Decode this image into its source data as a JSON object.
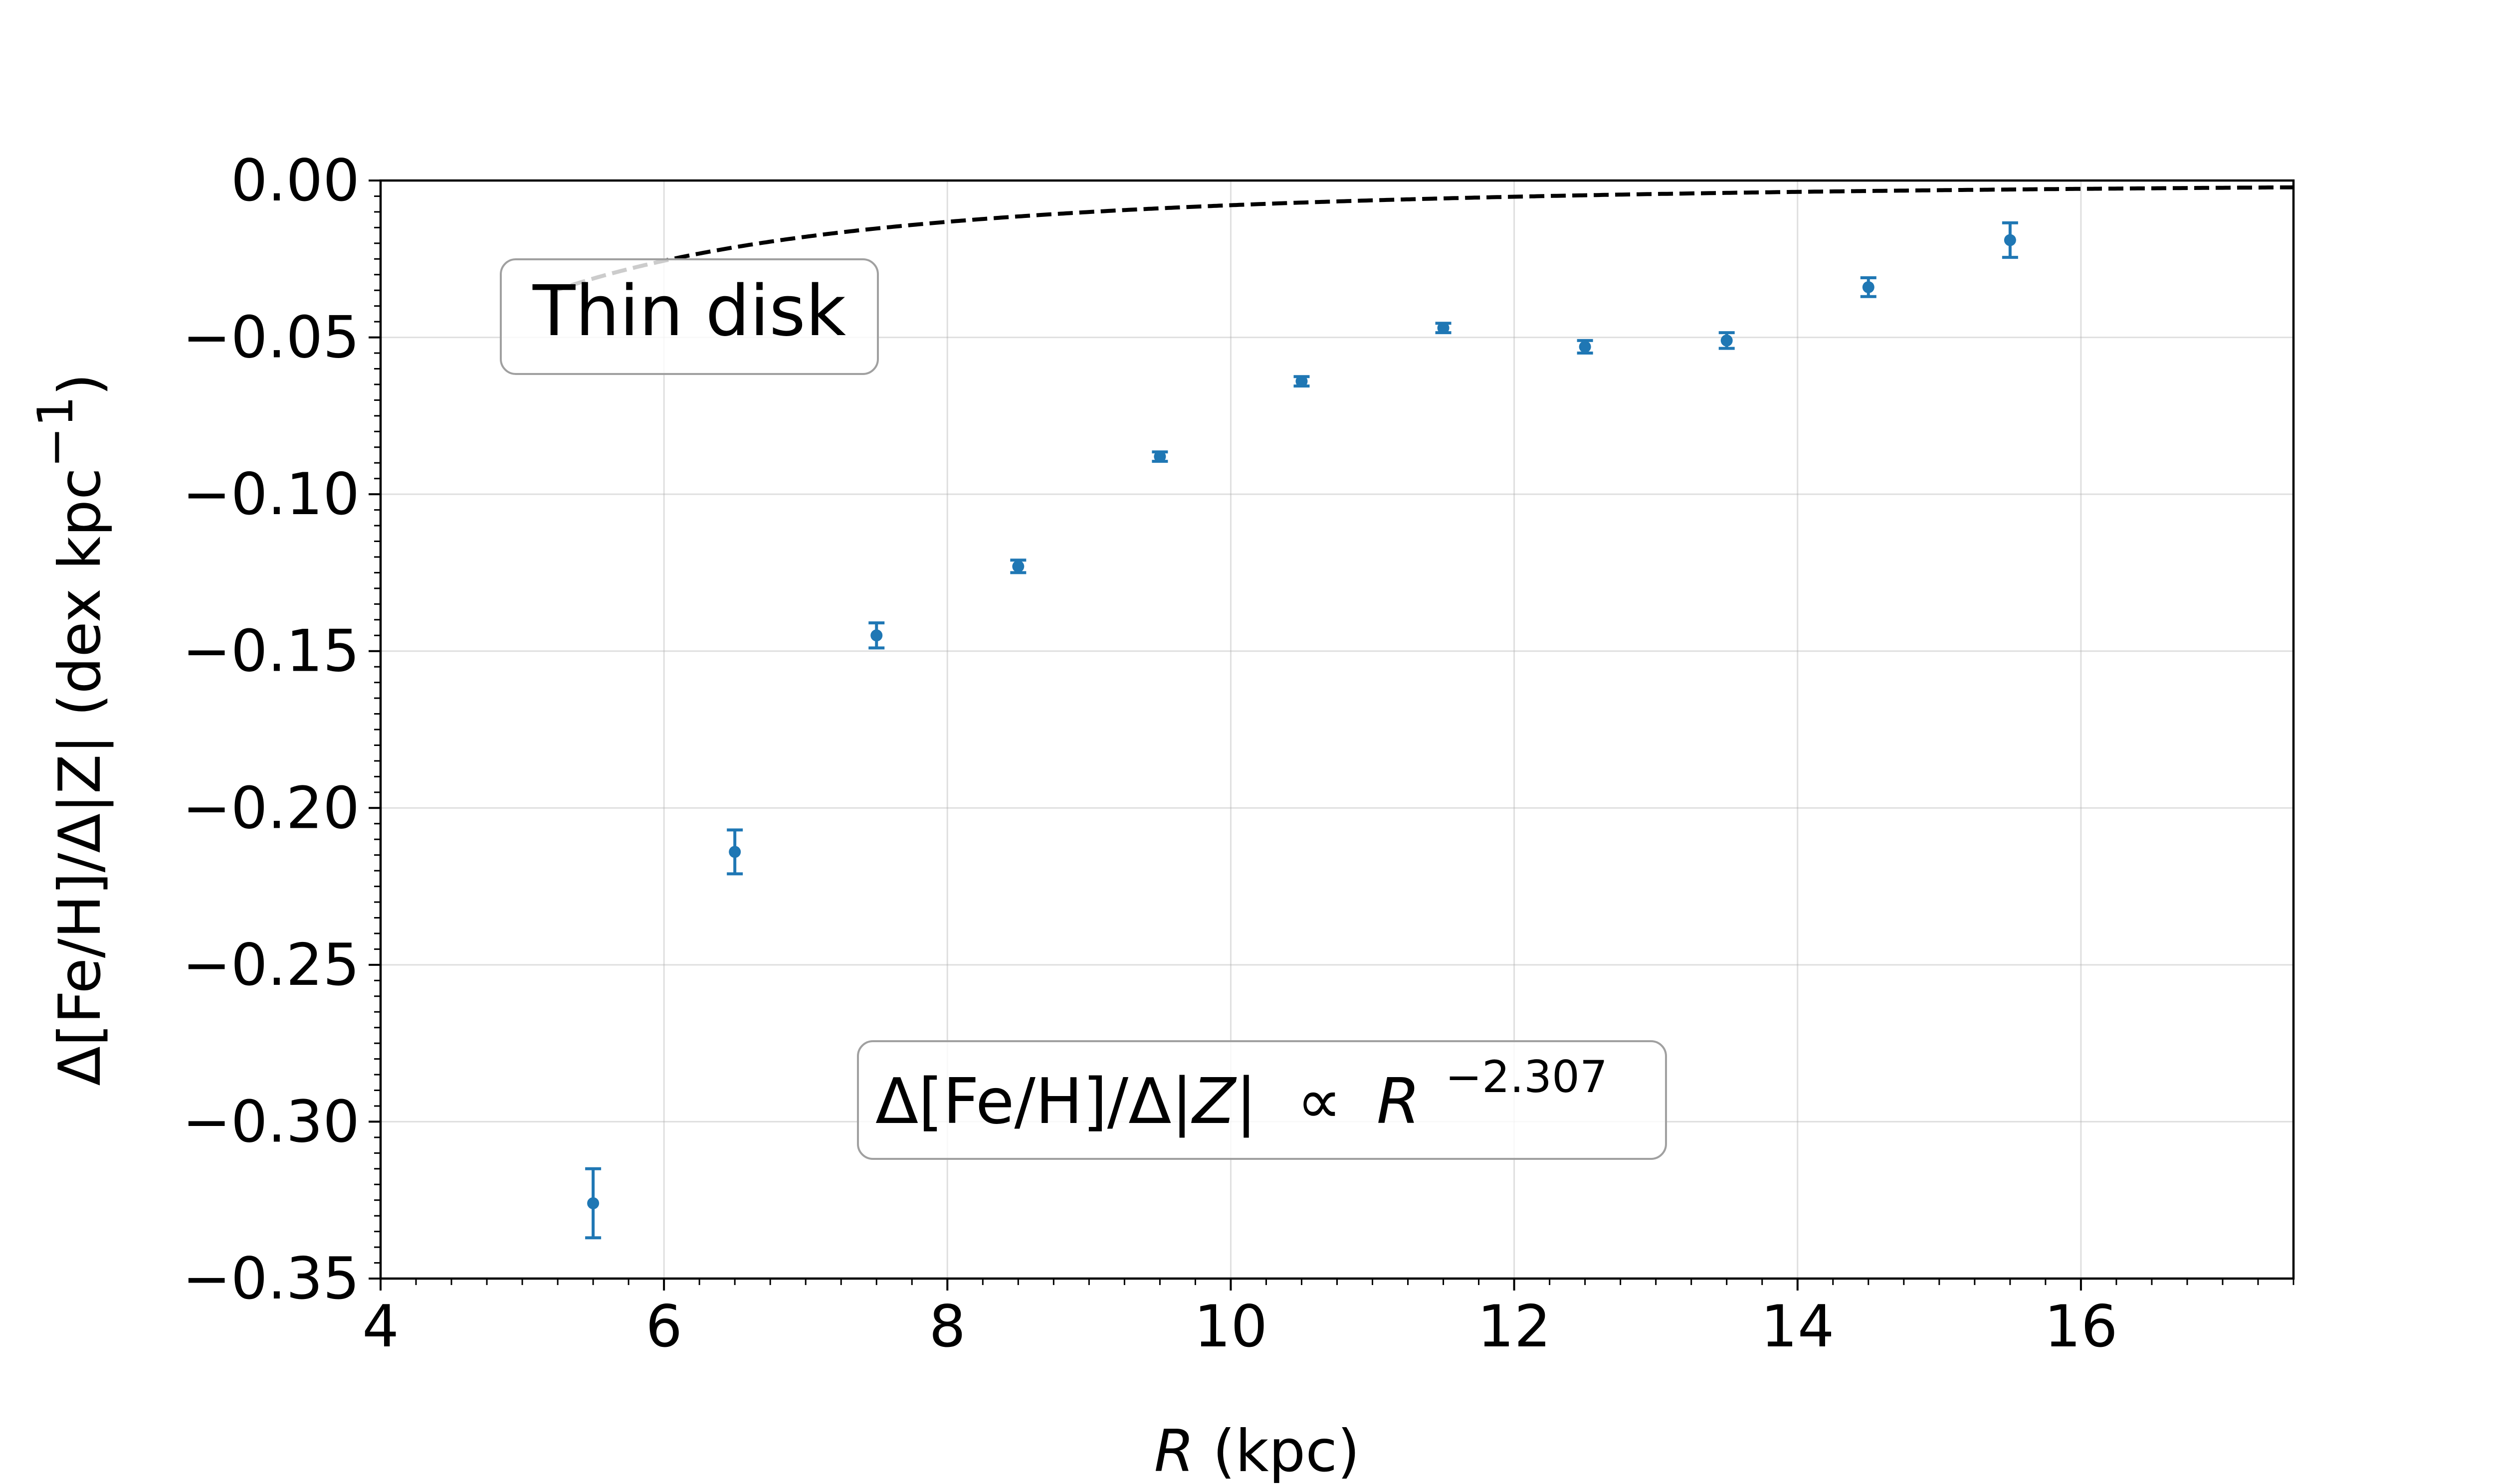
{
  "chart_data": {
    "type": "scatter",
    "xlabel": {
      "var": "R",
      "unit": " (kpc)"
    },
    "ylabel": "Δ[Fe/H]/Δ|Z| (dex kpc",
    "ylabel_sup": "−1",
    "ylabel_close": ")",
    "xlim": [
      4,
      17.5
    ],
    "ylim": [
      -0.35,
      0.0
    ],
    "xticks": [
      4,
      6,
      8,
      10,
      12,
      14,
      16
    ],
    "xtick_labels": [
      "4",
      "6",
      "8",
      "10",
      "12",
      "14",
      "16"
    ],
    "yticks": [
      0.0,
      -0.05,
      -0.1,
      -0.15,
      -0.2,
      -0.25,
      -0.3,
      -0.35
    ],
    "ytick_labels": [
      "0.00",
      "−0.05",
      "−0.10",
      "−0.15",
      "−0.20",
      "−0.25",
      "−0.30",
      "−0.35"
    ],
    "grid": true,
    "series": [
      {
        "style": "points-with-errorbars",
        "color": "#1f77b4",
        "x": [
          5.5,
          6.5,
          7.5,
          8.5,
          9.5,
          10.5,
          11.5,
          12.5,
          13.5,
          14.5,
          15.5
        ],
        "y": [
          -0.326,
          -0.214,
          -0.145,
          -0.123,
          -0.088,
          -0.064,
          -0.047,
          -0.053,
          -0.051,
          -0.034,
          -0.019
        ],
        "yerr": [
          0.011,
          0.007,
          0.004,
          0.002,
          0.0015,
          0.0015,
          0.0015,
          0.002,
          0.0025,
          0.003,
          0.0055
        ]
      },
      {
        "style": "dashed-fit",
        "color": "#000000",
        "power_law": {
          "coefficient": -1.596,
          "exponent": -2.307
        },
        "x_range": [
          5.2,
          17.5
        ]
      }
    ],
    "annotations": {
      "label_box": "Thin disk",
      "fit_box": {
        "lhs_1": "Δ[Fe/H]/Δ|",
        "lhs_var": "Z",
        "lhs_2": "|",
        "proportional": "∝",
        "base": "R",
        "exponent": "−2.307"
      }
    }
  }
}
